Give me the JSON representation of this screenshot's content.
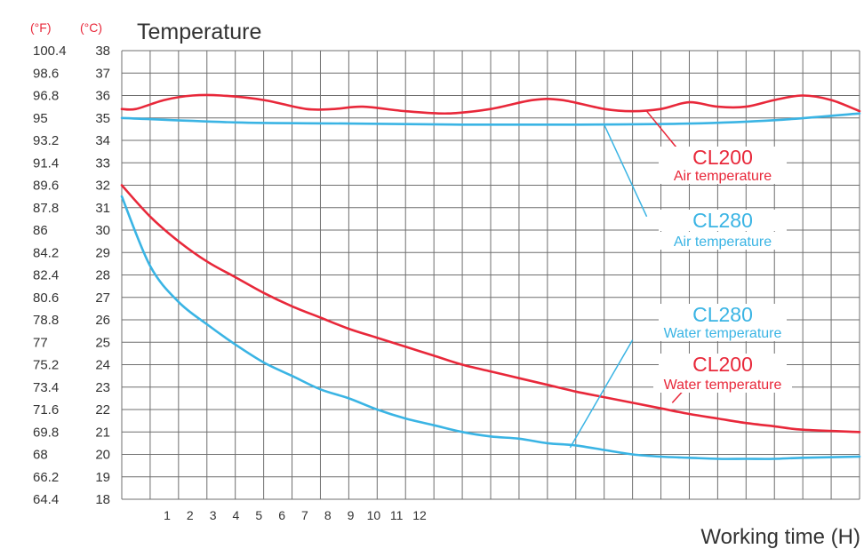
{
  "chart_data": {
    "type": "line",
    "title": "Temperature",
    "unit_labels": {
      "fahrenheit": "(°F)",
      "celsius": "(°C)"
    },
    "xlabel": "Working time (H)",
    "x_tick_labels": [
      "1",
      "2",
      "3",
      "4",
      "5",
      "6",
      "7",
      "8",
      "9",
      "10",
      "11",
      "12"
    ],
    "y_ticks_celsius": [
      38,
      37,
      36,
      35,
      34,
      33,
      32,
      31,
      30,
      29,
      28,
      27,
      26,
      25,
      24,
      23,
      22,
      21,
      20,
      19,
      18
    ],
    "y_ticks_fahrenheit": [
      "100.4",
      "98.6",
      "96.8",
      "95",
      "93.2",
      "91.4",
      "89.6",
      "87.8",
      "86",
      "84.2",
      "82.4",
      "80.6",
      "78.8",
      "77",
      "75.2",
      "73.4",
      "71.6",
      "69.8",
      "68",
      "66.2",
      "64.4"
    ],
    "ylim": [
      18,
      38
    ],
    "grid": true,
    "series": [
      {
        "name": "CL200 Air temperature",
        "color": "#e8283a",
        "points": [
          [
            0,
            35.4
          ],
          [
            0.5,
            35.4
          ],
          [
            1.5,
            35.8
          ],
          [
            2.5,
            36.0
          ],
          [
            3.5,
            36.0
          ],
          [
            5,
            35.8
          ],
          [
            6.5,
            35.4
          ],
          [
            7.5,
            35.4
          ],
          [
            8.5,
            35.5
          ],
          [
            10,
            35.3
          ],
          [
            11.5,
            35.2
          ],
          [
            13,
            35.4
          ],
          [
            14.5,
            35.8
          ],
          [
            15.5,
            35.8
          ],
          [
            17,
            35.4
          ],
          [
            18,
            35.3
          ],
          [
            19,
            35.4
          ],
          [
            20,
            35.7
          ],
          [
            21,
            35.5
          ],
          [
            22,
            35.5
          ],
          [
            23,
            35.8
          ],
          [
            24,
            36.0
          ],
          [
            25,
            35.8
          ],
          [
            26,
            35.3
          ]
        ]
      },
      {
        "name": "CL280 Air temperature",
        "color": "#3ab4e4",
        "points": [
          [
            0,
            35.0
          ],
          [
            4,
            34.8
          ],
          [
            8,
            34.75
          ],
          [
            12,
            34.7
          ],
          [
            16,
            34.7
          ],
          [
            20,
            34.75
          ],
          [
            23,
            34.9
          ],
          [
            26,
            35.2
          ]
        ]
      },
      {
        "name": "CL200 Water temperature",
        "color": "#e8283a",
        "points": [
          [
            0,
            32.0
          ],
          [
            1,
            30.6
          ],
          [
            2,
            29.5
          ],
          [
            3,
            28.6
          ],
          [
            4,
            27.9
          ],
          [
            5,
            27.2
          ],
          [
            6,
            26.6
          ],
          [
            7,
            26.1
          ],
          [
            8,
            25.6
          ],
          [
            9,
            25.2
          ],
          [
            10,
            24.8
          ],
          [
            11,
            24.4
          ],
          [
            12,
            24.0
          ],
          [
            13,
            23.7
          ],
          [
            14,
            23.4
          ],
          [
            15,
            23.1
          ],
          [
            16,
            22.8
          ],
          [
            17,
            22.55
          ],
          [
            18,
            22.3
          ],
          [
            19,
            22.05
          ],
          [
            20,
            21.8
          ],
          [
            21,
            21.6
          ],
          [
            22,
            21.4
          ],
          [
            23,
            21.25
          ],
          [
            24,
            21.1
          ],
          [
            26,
            21.0
          ]
        ]
      },
      {
        "name": "CL280 Water temperature",
        "color": "#3ab4e4",
        "points": [
          [
            0,
            31.5
          ],
          [
            1,
            28.4
          ],
          [
            2,
            26.8
          ],
          [
            3,
            25.8
          ],
          [
            4,
            24.9
          ],
          [
            5,
            24.1
          ],
          [
            6,
            23.5
          ],
          [
            7,
            22.9
          ],
          [
            8,
            22.5
          ],
          [
            9,
            22.0
          ],
          [
            10,
            21.6
          ],
          [
            11,
            21.3
          ],
          [
            12,
            21.0
          ],
          [
            13,
            20.8
          ],
          [
            14,
            20.7
          ],
          [
            15,
            20.5
          ],
          [
            16,
            20.4
          ],
          [
            17,
            20.2
          ],
          [
            18,
            20.0
          ],
          [
            19,
            19.9
          ],
          [
            20,
            19.85
          ],
          [
            21,
            19.8
          ],
          [
            22,
            19.8
          ],
          [
            23,
            19.8
          ],
          [
            24,
            19.85
          ],
          [
            26,
            19.9
          ]
        ]
      }
    ],
    "annotations": [
      {
        "title": "CL200",
        "subtitle": "Air temperature",
        "color": "#e8283a",
        "leader_from": [
          18.5,
          35.3
        ],
        "leader_to": [
          19.6,
          33.6
        ]
      },
      {
        "title": "CL280",
        "subtitle": "Air temperature",
        "color": "#3ab4e4",
        "leader_from": [
          17.0,
          34.7
        ],
        "leader_to": [
          18.5,
          30.6
        ]
      },
      {
        "title": "CL280",
        "subtitle": "Water temperature",
        "color": "#3ab4e4",
        "leader_from": [
          15.8,
          20.3
        ],
        "leader_to": [
          18.0,
          25.1
        ]
      },
      {
        "title": "CL200",
        "subtitle": "Water temperature",
        "color": "#e8283a",
        "leader_from": [
          19.4,
          22.3
        ],
        "leader_to": [
          19.9,
          23.0
        ]
      }
    ]
  }
}
